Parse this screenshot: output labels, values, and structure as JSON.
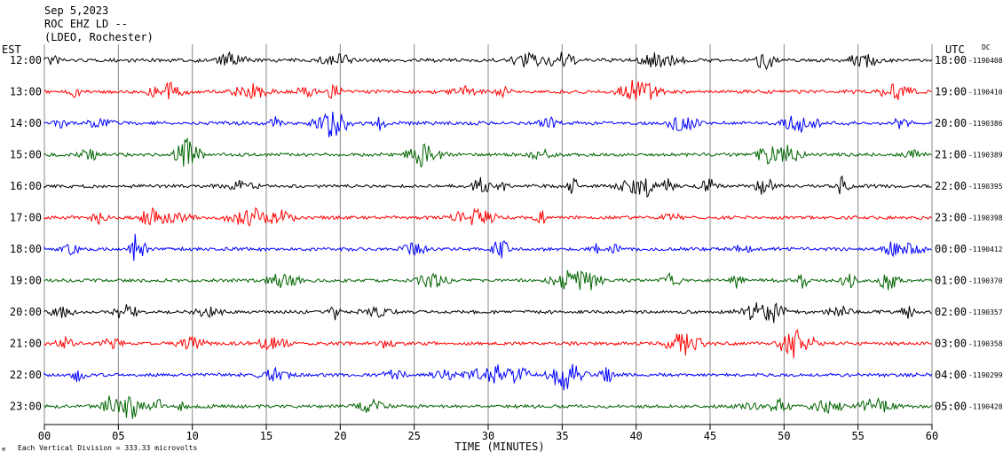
{
  "header": {
    "date": "Sep 5,2023",
    "station": "ROC EHZ LD --",
    "network": "(LDEO, Rochester)"
  },
  "left_axis_label": "EST",
  "right_axis_label": "UTC",
  "dc_label": "DC",
  "footer": {
    "scale_note": "Each Vertical Division =  333.33 microvolts",
    "logo": "≋"
  },
  "chart_data": {
    "type": "line",
    "xlabel": "TIME (MINUTES)",
    "xlim": [
      0,
      60
    ],
    "x_ticks": [
      "00",
      "05",
      "10",
      "15",
      "20",
      "25",
      "30",
      "35",
      "40",
      "45",
      "50",
      "55",
      "60"
    ],
    "rows": [
      {
        "est": "12:00",
        "utc": "18:00",
        "dc": "-1190408",
        "color": "#000000"
      },
      {
        "est": "13:00",
        "utc": "19:00",
        "dc": "-1190410",
        "color": "#ff0000"
      },
      {
        "est": "14:00",
        "utc": "20:00",
        "dc": "-1190386",
        "color": "#0000ff"
      },
      {
        "est": "15:00",
        "utc": "21:00",
        "dc": "-1190389",
        "color": "#006400"
      },
      {
        "est": "16:00",
        "utc": "22:00",
        "dc": "-1190395",
        "color": "#000000"
      },
      {
        "est": "17:00",
        "utc": "23:00",
        "dc": "-1190398",
        "color": "#ff0000"
      },
      {
        "est": "18:00",
        "utc": "00:00",
        "dc": "-1190412",
        "color": "#0000ff"
      },
      {
        "est": "19:00",
        "utc": "01:00",
        "dc": "-1190370",
        "color": "#006400"
      },
      {
        "est": "20:00",
        "utc": "02:00",
        "dc": "-1190357",
        "color": "#000000"
      },
      {
        "est": "21:00",
        "utc": "03:00",
        "dc": "-1190358",
        "color": "#ff0000"
      },
      {
        "est": "22:00",
        "utc": "04:00",
        "dc": "-1190299",
        "color": "#0000ff"
      },
      {
        "est": "23:00",
        "utc": "05:00",
        "dc": "-1190428",
        "color": "#006400"
      }
    ]
  }
}
